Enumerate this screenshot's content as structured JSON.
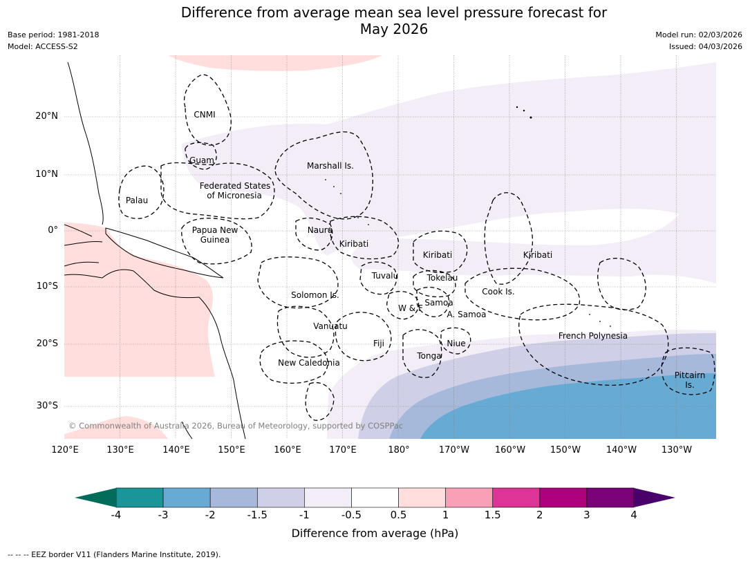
{
  "title_line1": "Difference from average mean sea level pressure forecast for",
  "title_line2": "May 2026",
  "meta_left": {
    "base_period": "Base period: 1981-2018",
    "model": "Model: ACCESS-S2"
  },
  "meta_right": {
    "model_run": "Model run: 02/03/2026",
    "issued": "Issued: 04/03/2026"
  },
  "lat_labels": [
    "20°N",
    "10°N",
    "0°",
    "10°S",
    "20°S",
    "30°S"
  ],
  "lon_labels": [
    "120°E",
    "130°E",
    "140°E",
    "150°E",
    "160°E",
    "170°E",
    "180°",
    "170°W",
    "160°W",
    "150°W",
    "140°W",
    "130°W"
  ],
  "regions": {
    "cnmi": "CNMI",
    "guam": "Guam",
    "palau": "Palau",
    "fsm_1": "Federated States",
    "fsm_2": "of Micronesia",
    "marshall": "Marshall Is.",
    "nauru": "Nauru",
    "kiribati_w": "Kiribati",
    "kiribati_c": "Kiribati",
    "kiribati_e": "Kiribati",
    "png_1": "Papua New",
    "png_2": "Guinea",
    "tuvalu": "Tuvalu",
    "tokelau": "Tokelau",
    "cook": "Cook Is.",
    "solomon": "Solomon Is.",
    "samoa": "Samoa",
    "wf": "W & F",
    "asamoa": "A. Samoa",
    "vanuatu": "Vanuatu",
    "fiji": "Fiji",
    "niue": "Niue",
    "tonga": "Tonga",
    "new_caledonia": "New Caledonia",
    "french_polynesia": "French Polynesia",
    "pitcairn_1": "Pitcairn",
    "pitcairn_2": "Is."
  },
  "copyright": "© Commonwealth of Australia 2026, Bureau of Meteorology, supported by COSPPac",
  "colorbar": {
    "ticks": [
      "-4",
      "-3",
      "-2",
      "-1.5",
      "-1",
      "-0.5",
      "0.5",
      "1",
      "1.5",
      "2",
      "3",
      "4"
    ],
    "colors": [
      "#1a9699",
      "#67abd4",
      "#a6b9db",
      "#cfd0e7",
      "#f2edf6",
      "#ffffff",
      "#ffdedd",
      "#f9a0b7",
      "#dd3497",
      "#ae017e",
      "#7a0177"
    ],
    "under_color": "#016c59",
    "over_color": "#49006a",
    "label": "Difference from average (hPa)"
  },
  "footnote": "--  --  -- EEZ border V11 (Flanders Marine Institute, 2019)."
}
